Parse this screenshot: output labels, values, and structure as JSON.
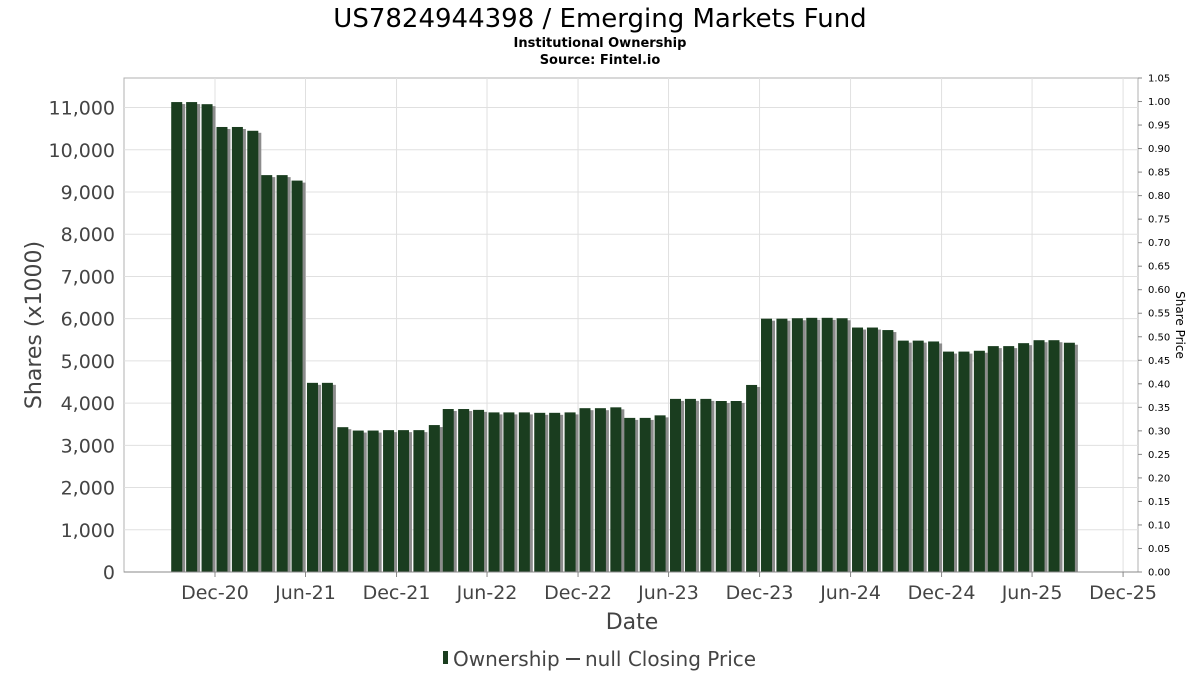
{
  "chart_data": {
    "type": "bar",
    "title": "US7824944398 / Emerging Markets Fund",
    "subtitle_1": "Institutional Ownership",
    "subtitle_2": "Source: Fintel.io",
    "xlabel": "Date",
    "ylabel": "Shares (x1000)",
    "y2label": "Share Price",
    "ylim": [
      0,
      11700
    ],
    "y2lim": [
      0,
      1.05
    ],
    "grid": true,
    "legend_position": "bottom-center",
    "x_domain": [
      "2020-06-01",
      "2025-12-31"
    ],
    "yticks": [
      {
        "value": 0,
        "label": "0"
      },
      {
        "value": 1000,
        "label": "1,000"
      },
      {
        "value": 2000,
        "label": "2,000"
      },
      {
        "value": 3000,
        "label": "3,000"
      },
      {
        "value": 4000,
        "label": "4,000"
      },
      {
        "value": 5000,
        "label": "5,000"
      },
      {
        "value": 6000,
        "label": "6,000"
      },
      {
        "value": 7000,
        "label": "7,000"
      },
      {
        "value": 8000,
        "label": "8,000"
      },
      {
        "value": 9000,
        "label": "9,000"
      },
      {
        "value": 10000,
        "label": "10,000"
      },
      {
        "value": 11000,
        "label": "11,000"
      }
    ],
    "y2ticks": [
      "0.00",
      "0.05",
      "0.10",
      "0.15",
      "0.20",
      "0.25",
      "0.30",
      "0.35",
      "0.40",
      "0.45",
      "0.50",
      "0.55",
      "0.60",
      "0.65",
      "0.70",
      "0.75",
      "0.80",
      "0.85",
      "0.90",
      "0.95",
      "1.00",
      "1.05"
    ],
    "xticks": [
      {
        "date": "2020-12-01",
        "label": "Dec-20"
      },
      {
        "date": "2021-06-01",
        "label": "Jun-21"
      },
      {
        "date": "2021-12-01",
        "label": "Dec-21"
      },
      {
        "date": "2022-06-01",
        "label": "Jun-22"
      },
      {
        "date": "2022-12-01",
        "label": "Dec-22"
      },
      {
        "date": "2023-06-01",
        "label": "Jun-23"
      },
      {
        "date": "2023-12-01",
        "label": "Dec-23"
      },
      {
        "date": "2024-06-01",
        "label": "Jun-24"
      },
      {
        "date": "2024-12-01",
        "label": "Dec-24"
      },
      {
        "date": "2025-06-01",
        "label": "Jun-25"
      },
      {
        "date": "2025-12-01",
        "label": "Dec-25"
      }
    ],
    "series": [
      {
        "name": "Ownership",
        "color": "#1a3d1f",
        "dates": [
          "2020-09-15",
          "2020-10-15",
          "2020-11-15",
          "2020-12-15",
          "2021-01-15",
          "2021-02-15",
          "2021-03-15",
          "2021-04-15",
          "2021-05-15",
          "2021-06-15",
          "2021-07-15",
          "2021-08-15",
          "2021-09-15",
          "2021-10-15",
          "2021-11-15",
          "2021-12-15",
          "2022-01-15",
          "2022-02-15",
          "2022-03-15",
          "2022-04-15",
          "2022-05-15",
          "2022-06-15",
          "2022-07-15",
          "2022-08-15",
          "2022-09-15",
          "2022-10-15",
          "2022-11-15",
          "2022-12-15",
          "2023-01-15",
          "2023-02-15",
          "2023-03-15",
          "2023-04-15",
          "2023-05-15",
          "2023-06-15",
          "2023-07-15",
          "2023-08-15",
          "2023-09-15",
          "2023-10-15",
          "2023-11-15",
          "2023-12-15",
          "2024-01-15",
          "2024-02-15",
          "2024-03-15",
          "2024-04-15",
          "2024-05-15",
          "2024-06-15",
          "2024-07-15",
          "2024-08-15",
          "2024-09-15",
          "2024-10-15",
          "2024-11-15",
          "2024-12-15",
          "2025-01-15",
          "2025-02-15",
          "2025-03-15",
          "2025-04-15",
          "2025-05-15",
          "2025-06-15",
          "2025-07-15",
          "2025-08-15"
        ],
        "values": [
          11130,
          11130,
          11080,
          10540,
          10540,
          10450,
          9400,
          9400,
          9270,
          4480,
          4480,
          3430,
          3350,
          3350,
          3360,
          3360,
          3360,
          3480,
          3860,
          3860,
          3840,
          3780,
          3780,
          3780,
          3770,
          3770,
          3780,
          3880,
          3880,
          3900,
          3650,
          3650,
          3710,
          4100,
          4100,
          4100,
          4050,
          4050,
          4430,
          6000,
          6000,
          6010,
          6020,
          6020,
          6010,
          5790,
          5790,
          5730,
          5480,
          5480,
          5460,
          5220,
          5220,
          5240,
          5350,
          5350,
          5420,
          5490,
          5490,
          5430
        ]
      }
    ],
    "legend": [
      {
        "marker": "bar",
        "label": "Ownership"
      },
      {
        "marker": "line",
        "label": "null Closing Price"
      }
    ]
  }
}
